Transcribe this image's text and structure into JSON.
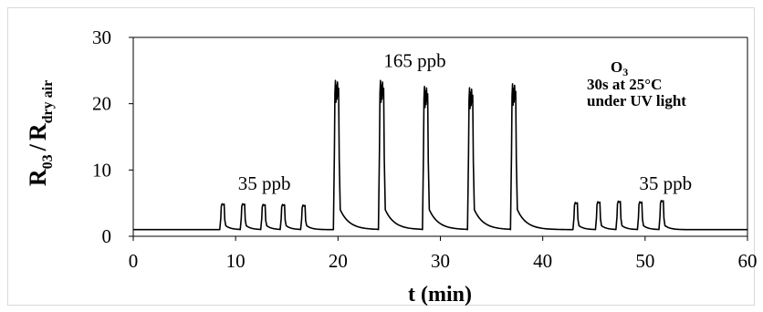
{
  "chart_data": {
    "type": "line",
    "title": "",
    "xlabel": "t (min)",
    "ylabel": {
      "main_a": "R",
      "sub_a": "03",
      "separator": "/",
      "main_b": "R",
      "sub_b": "dry air"
    },
    "xlim": [
      0,
      60
    ],
    "ylim": [
      0,
      30
    ],
    "x_ticks": [
      0,
      10,
      20,
      30,
      40,
      50,
      60
    ],
    "y_ticks": [
      0,
      10,
      20,
      30
    ],
    "grid": false,
    "annotations": [
      {
        "text": "35 ppb",
        "x": 12.8,
        "y": 7.0
      },
      {
        "text": "165 ppb",
        "x": 27.5,
        "y": 25.5
      },
      {
        "text": "35 ppb",
        "x": 52.0,
        "y": 7.0
      }
    ],
    "legend_block": {
      "line1_main": "O",
      "line1_sub": "3",
      "line2": "30s at 25°C",
      "line3": "under UV light"
    },
    "series": [
      {
        "baseline": 1.0,
        "pulses": [
          {
            "t": 8.6,
            "peak": 4.9
          },
          {
            "t": 10.6,
            "peak": 4.9
          },
          {
            "t": 12.6,
            "peak": 4.8
          },
          {
            "t": 14.5,
            "peak": 4.8
          },
          {
            "t": 16.5,
            "peak": 4.7
          },
          {
            "t": 19.7,
            "peak": 23.5
          },
          {
            "t": 24.1,
            "peak": 23.5
          },
          {
            "t": 28.4,
            "peak": 22.6
          },
          {
            "t": 32.8,
            "peak": 22.4
          },
          {
            "t": 37.0,
            "peak": 23.0
          },
          {
            "t": 43.1,
            "peak": 5.1
          },
          {
            "t": 45.3,
            "peak": 5.2
          },
          {
            "t": 47.3,
            "peak": 5.3
          },
          {
            "t": 49.4,
            "peak": 5.2
          },
          {
            "t": 51.5,
            "peak": 5.4
          }
        ]
      }
    ]
  }
}
